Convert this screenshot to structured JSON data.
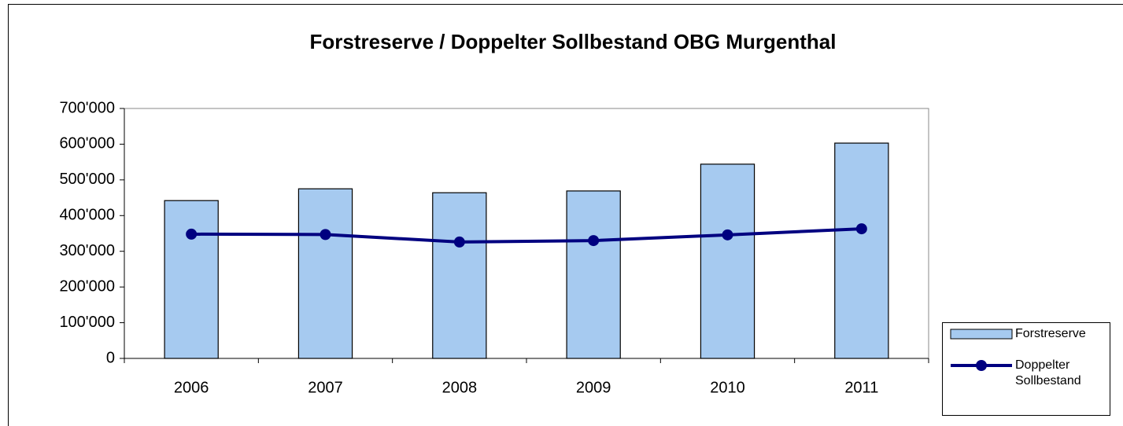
{
  "chart_data": {
    "type": "bar_line",
    "title": "Forstreserve / Doppelter Sollbestand OBG Murgenthal",
    "categories": [
      "2006",
      "2007",
      "2008",
      "2009",
      "2010",
      "2011"
    ],
    "series": [
      {
        "name": "Forstreserve",
        "type": "bar",
        "color": "#a6caf0",
        "values": [
          442000,
          475000,
          464000,
          469000,
          544000,
          603000
        ]
      },
      {
        "name": "Doppelter Sollbestand",
        "type": "line",
        "color": "#000080",
        "values": [
          348000,
          347000,
          326000,
          330000,
          346000,
          363000
        ]
      }
    ],
    "ylim": [
      0,
      700000
    ],
    "yticks": [
      0,
      {
        "value": 100000,
        "label": "100'000"
      },
      {
        "value": 200000,
        "label": "200'000"
      },
      {
        "value": 300000,
        "label": "300'000"
      },
      {
        "value": 400000,
        "label": "400'000"
      },
      {
        "value": 500000,
        "label": "500'000"
      },
      {
        "value": 600000,
        "label": "600'000"
      },
      {
        "value": 700000,
        "label": "700'000"
      }
    ],
    "grid": false,
    "legend": "right"
  }
}
